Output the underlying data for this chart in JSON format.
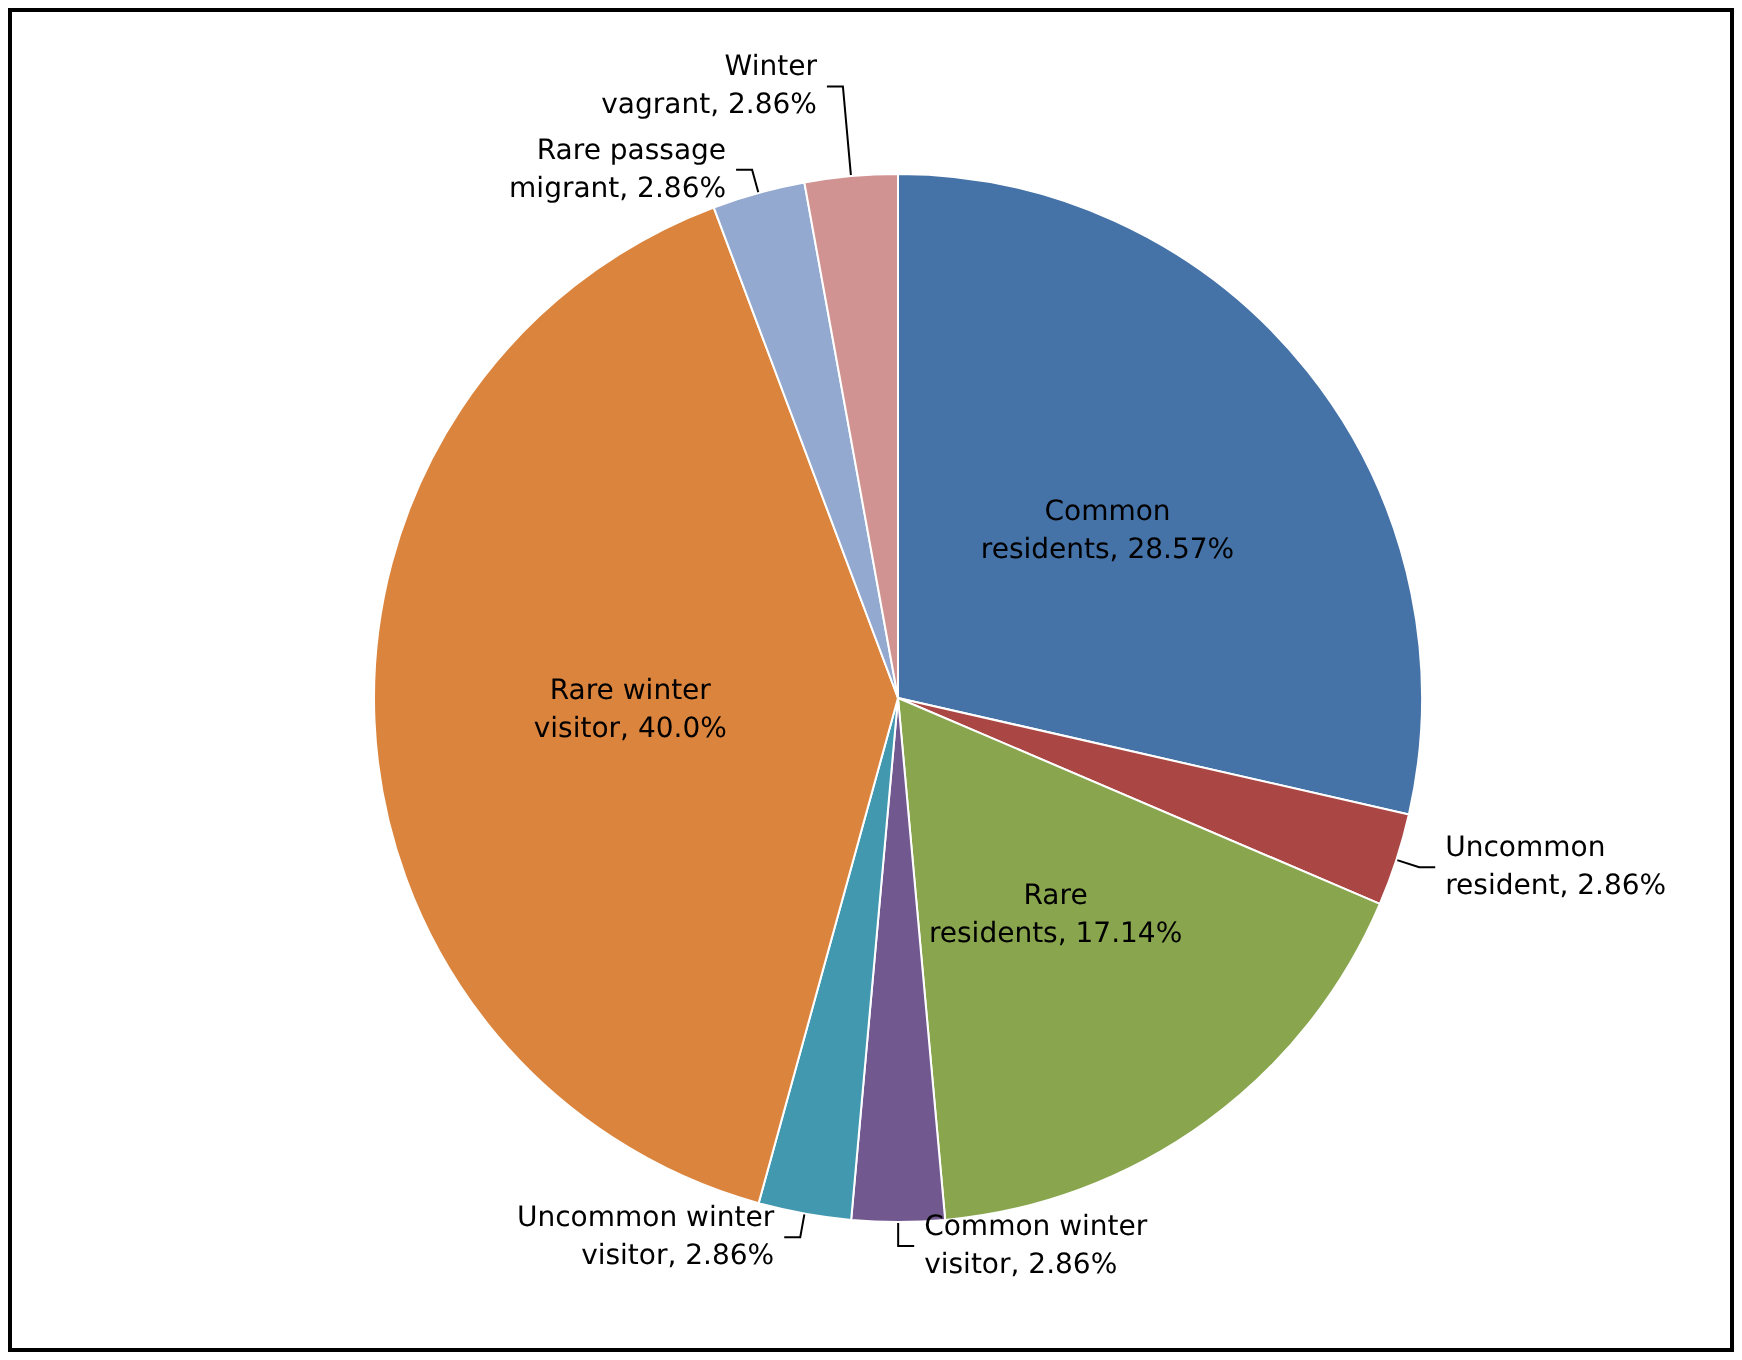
{
  "chart_data": {
    "type": "pie",
    "categories": [
      "Common residents",
      "Uncommon resident",
      "Rare residents",
      "Common winter visitor",
      "Uncommon winter visitor",
      "Rare winter visitor",
      "Rare passage migrant",
      "Winter vagrant"
    ],
    "values": [
      28.57,
      2.86,
      17.14,
      2.86,
      2.86,
      40.0,
      2.86,
      2.86
    ],
    "value_labels": [
      "28.57%",
      "2.86%",
      "17.14%",
      "2.86%",
      "2.86%",
      "40.0%",
      "2.86%",
      "2.86%"
    ],
    "colors": [
      "#4572a7",
      "#aa4643",
      "#89a54e",
      "#71588f",
      "#4198af",
      "#db843d",
      "#93a9cf",
      "#d19392"
    ],
    "legend": false
  }
}
